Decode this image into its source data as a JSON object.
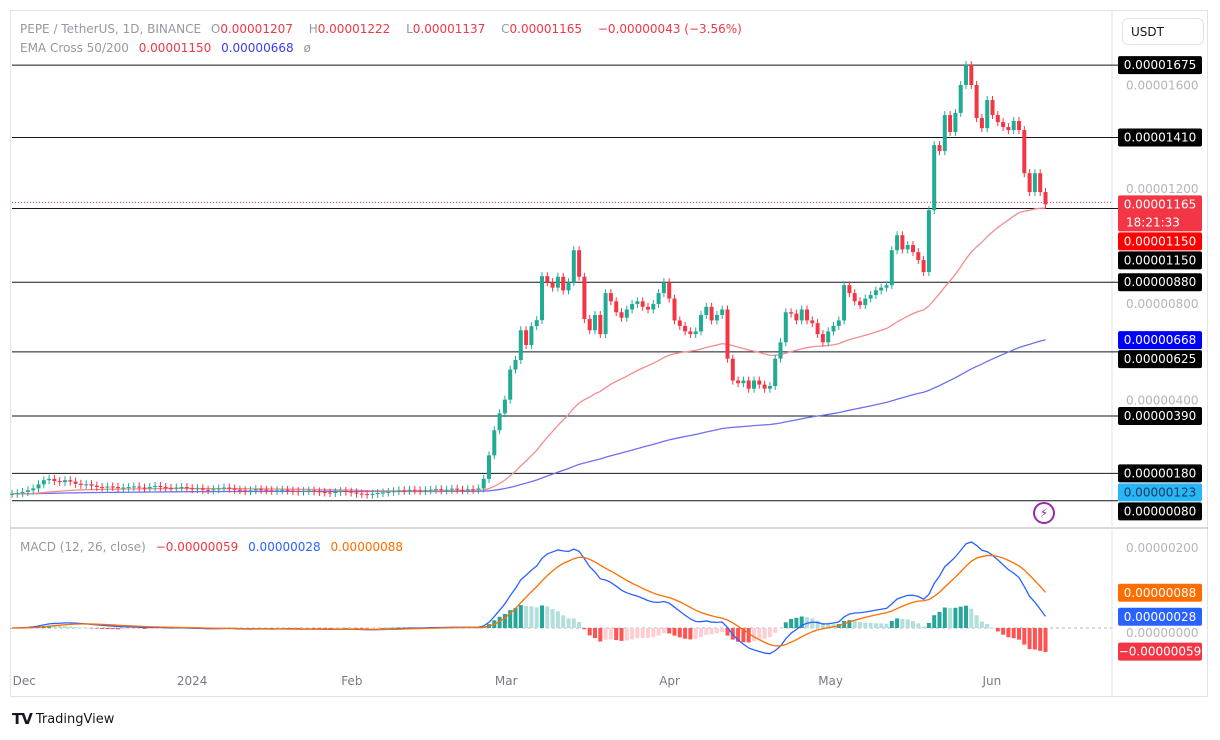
{
  "header": {
    "symbol": "PEPE / TetherUS, 1D, BINANCE",
    "o_label": "O",
    "o": "0.00001207",
    "h_label": "H",
    "h": "0.00001222",
    "l_label": "L",
    "l": "0.00001137",
    "c_label": "C",
    "c": "0.00001165",
    "change": "−0.00000043 (−3.56%)",
    "ema_label": "EMA Cross 50/200",
    "ema50": "0.00001150",
    "ema200": "0.00000668",
    "ema_extra": "ø"
  },
  "macd_legend": {
    "label": "MACD (12, 26, close)",
    "hist": "−0.00000059",
    "macd": "0.00000028",
    "signal": "0.00000088"
  },
  "currency_button": "USDT",
  "branding": "TradingView",
  "colors": {
    "up": "#22ab94",
    "down": "#f23645",
    "ema50": "#f28d8d",
    "ema200": "#6f6ff0",
    "macd": "#2962ff",
    "signal": "#ff6d00",
    "hist_up": "#26a69a",
    "hist_up_fade": "#b2dfdb",
    "hist_down": "#ff5252",
    "hist_down_fade": "#ffcdd2",
    "level_line": "#131722",
    "last_price": "#f23645"
  },
  "chart_data": {
    "type": "candlestick",
    "x_start": "2023-11-29",
    "x_interval": "1D",
    "xlabels": [
      {
        "label": "Dec",
        "date": "2023-12-01"
      },
      {
        "label": "2024",
        "date": "2024-01-01"
      },
      {
        "label": "Feb",
        "date": "2024-02-01"
      },
      {
        "label": "Mar",
        "date": "2024-03-01"
      },
      {
        "label": "Apr",
        "date": "2024-04-01"
      },
      {
        "label": "May",
        "date": "2024-05-01"
      },
      {
        "label": "Jun",
        "date": "2024-06-01"
      }
    ],
    "ylim": [
      -2e-07,
      1.84e-05
    ],
    "close": [
      1.05e-06,
      1.08e-06,
      1.12e-06,
      1.18e-06,
      1.25e-06,
      1.4e-06,
      1.55e-06,
      1.6e-06,
      1.52e-06,
      1.48e-06,
      1.55e-06,
      1.5e-06,
      1.42e-06,
      1.38e-06,
      1.4e-06,
      1.35e-06,
      1.3e-06,
      1.28e-06,
      1.32e-06,
      1.3e-06,
      1.26e-06,
      1.28e-06,
      1.3e-06,
      1.32e-06,
      1.28e-06,
      1.25e-06,
      1.3e-06,
      1.34e-06,
      1.3e-06,
      1.27e-06,
      1.25e-06,
      1.28e-06,
      1.3e-06,
      1.26e-06,
      1.22e-06,
      1.25e-06,
      1.2e-06,
      1.18e-06,
      1.22e-06,
      1.25e-06,
      1.28e-06,
      1.24e-06,
      1.2e-06,
      1.18e-06,
      1.15e-06,
      1.18e-06,
      1.22e-06,
      1.2e-06,
      1.18e-06,
      1.16e-06,
      1.18e-06,
      1.2e-06,
      1.17e-06,
      1.15e-06,
      1.13e-06,
      1.15e-06,
      1.17e-06,
      1.14e-06,
      1.12e-06,
      1.1e-06,
      1.08e-06,
      1.12e-06,
      1.15e-06,
      1.13e-06,
      1.1e-06,
      1.06e-06,
      1.04e-06,
      1.02e-06,
      1.05e-06,
      1.08e-06,
      1.1e-06,
      1.12e-06,
      1.15e-06,
      1.18e-06,
      1.16e-06,
      1.2e-06,
      1.18e-06,
      1.15e-06,
      1.18e-06,
      1.2e-06,
      1.22e-06,
      1.18e-06,
      1.2e-06,
      1.24e-06,
      1.2e-06,
      1.18e-06,
      1.22e-06,
      1.2e-06,
      1.25e-06,
      1.6e-06,
      2.46e-06,
      3.38e-06,
      4e-06,
      4.5e-06,
      5.6e-06,
      5.95e-06,
      7.04e-06,
      6.5e-06,
      7.19e-06,
      7.41e-06,
      9.02e-06,
      8.8e-06,
      8.6e-06,
      9e-06,
      8.5e-06,
      8.8e-06,
      9.97e-06,
      9e-06,
      7.45e-06,
      7.04e-06,
      7.6e-06,
      6.9e-06,
      8.4e-06,
      8.1e-06,
      7.7e-06,
      7.5e-06,
      7.8e-06,
      8e-06,
      8.1e-06,
      7.9e-06,
      7.8e-06,
      8e-06,
      8.4e-06,
      8.8e-06,
      8.2e-06,
      7.4e-06,
      7.2e-06,
      7e-06,
      6.9e-06,
      7e-06,
      7.6e-06,
      7.9e-06,
      7.4e-06,
      7.6e-06,
      7.8e-06,
      6e-06,
      5.2e-06,
      5.1e-06,
      5.2e-06,
      4.9e-06,
      5.2e-06,
      5.05e-06,
      4.9e-06,
      5e-06,
      6e-06,
      6.6e-06,
      7.7e-06,
      7.65e-06,
      7.4e-06,
      7.8e-06,
      7.4e-06,
      7.3e-06,
      6.9e-06,
      6.6e-06,
      7e-06,
      7.2e-06,
      7.4e-06,
      8.69e-06,
      8.4e-06,
      8.1e-06,
      7.96e-06,
      8.2e-06,
      8.33e-06,
      8.5e-06,
      8.6e-06,
      8.69e-06,
      9.97e-06,
      1.052e-05,
      1e-05,
      1.016e-05,
      9.9e-06,
      9.61e-06,
      9.17e-06,
      1.144e-05,
      1.382e-05,
      1.36e-05,
      1.492e-05,
      1.43e-05,
      1.5e-05,
      1.602e-05,
      1.675e-05,
      1.602e-05,
      1.481e-05,
      1.444e-05,
      1.547e-05,
      1.492e-05,
      1.466e-05,
      1.448e-05,
      1.437e-05,
      1.47e-05,
      1.437e-05,
      1.279e-05,
      1.21e-05,
      1.279e-05,
      1.21e-05,
      1.165e-05
    ],
    "indicators": [
      "EMA 50",
      "EMA 200",
      "MACD (12, 26, close)"
    ],
    "levels": [
      1.675e-05,
      1.41e-05,
      1.15e-05,
      8.8e-06,
      6.25e-06,
      3.9e-06,
      1.8e-06,
      8e-07
    ],
    "price_axis_ticks": [
      "0.00001600",
      "0.00001200",
      "0.00000800",
      "0.00000400"
    ],
    "price_axis_badges": [
      {
        "text": "0.00001675",
        "value": 1.675e-05,
        "kind": "level"
      },
      {
        "text": "0.00001410",
        "value": 1.41e-05,
        "kind": "level"
      },
      {
        "text": "0.00001165",
        "sub": "18:21:33",
        "value": 1.165e-05,
        "kind": "last"
      },
      {
        "text": "0.00001150",
        "value": 1.15e-05,
        "kind": "ema50"
      },
      {
        "text": "0.00001150",
        "value": 1.15e-05,
        "kind": "level"
      },
      {
        "text": "0.00000880",
        "value": 8.8e-06,
        "kind": "level"
      },
      {
        "text": "0.00000668",
        "value": 6.68e-06,
        "kind": "ema200"
      },
      {
        "text": "0.00000625",
        "value": 6.25e-06,
        "kind": "level"
      },
      {
        "text": "0.00000390",
        "value": 3.9e-06,
        "kind": "level"
      },
      {
        "text": "0.00000180",
        "value": 1.8e-06,
        "kind": "level"
      },
      {
        "text": "0.00000123",
        "value": 1.23e-06,
        "kind": "cyan"
      },
      {
        "text": "0.00000080",
        "value": 8e-07,
        "kind": "level"
      }
    ],
    "macd_axis_ticks": [
      "0.00000200",
      "0.00000000"
    ],
    "macd_badges": [
      {
        "text": "0.00000088",
        "value": 8.8e-07,
        "kind": "signal"
      },
      {
        "text": "0.00000028",
        "value": 2.8e-07,
        "kind": "macd"
      },
      {
        "text": "−0.00000059",
        "value": -5.9e-07,
        "kind": "hist"
      }
    ]
  }
}
